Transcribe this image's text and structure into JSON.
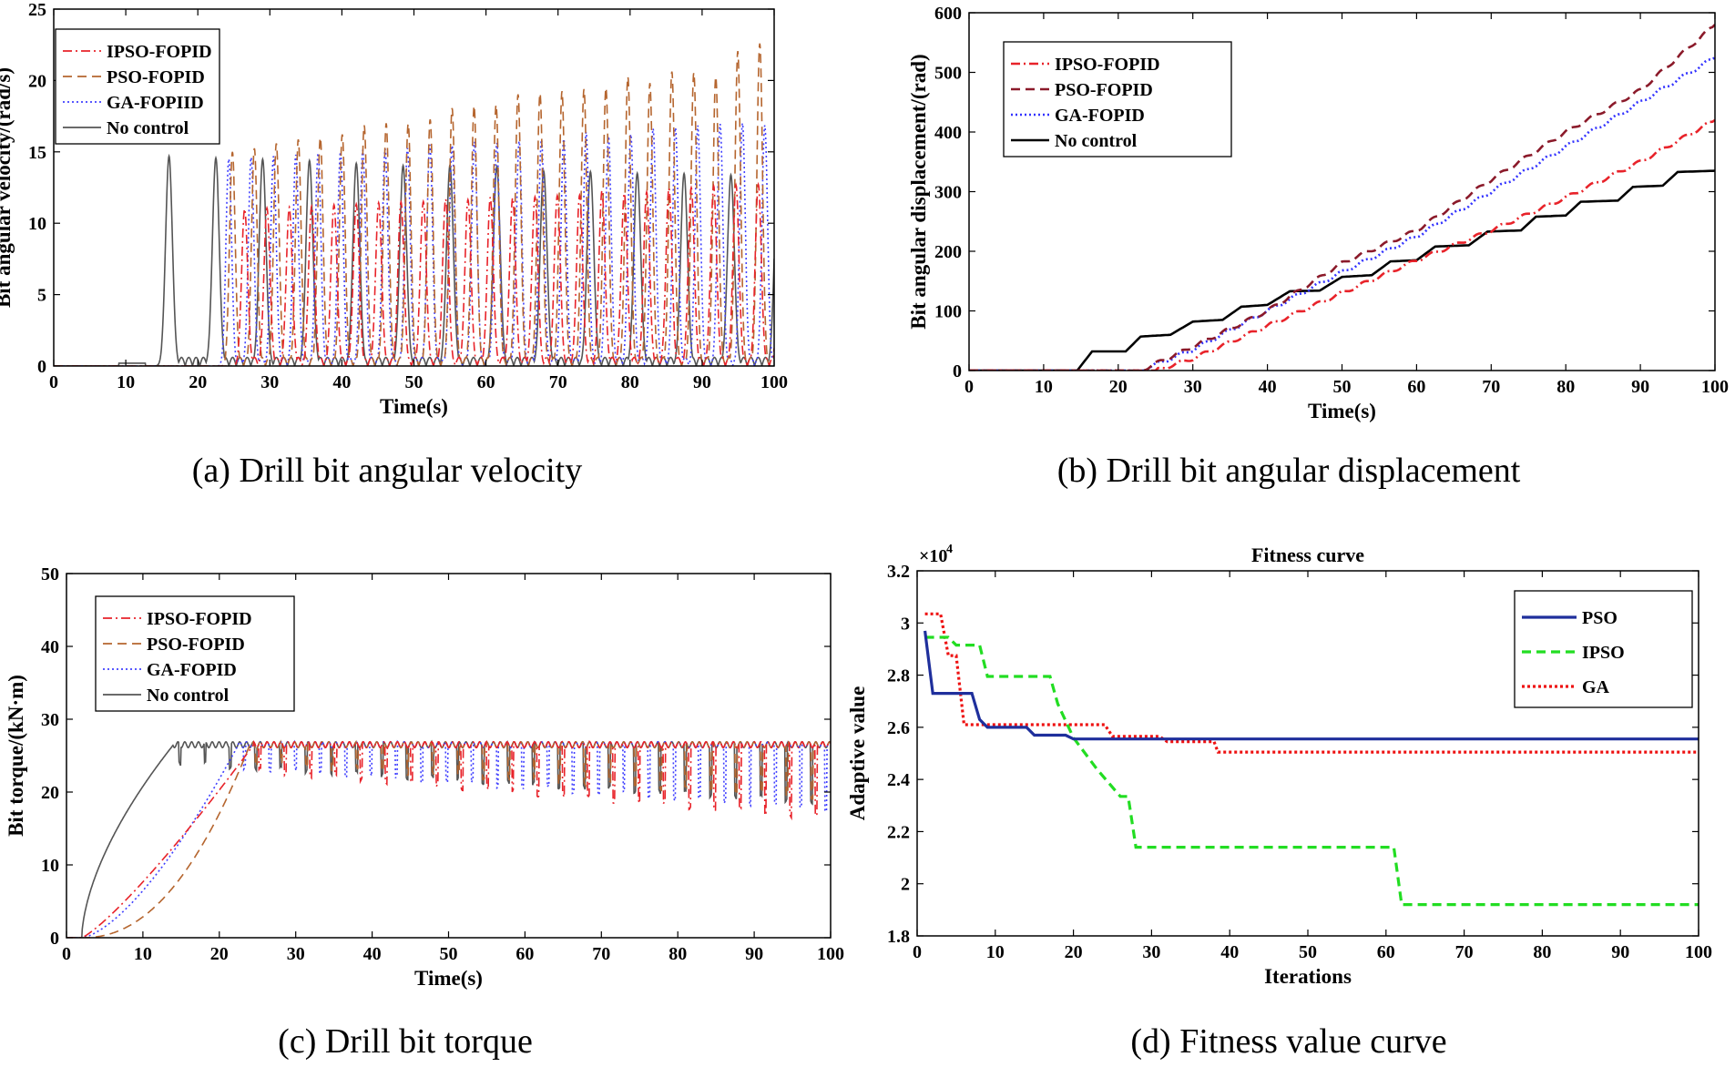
{
  "captions": {
    "a": "(a) Drill bit angular velocity",
    "b": "(b) Drill bit angular displacement",
    "c": "(c) Drill bit torque",
    "d": "(d) Fitness value curve"
  },
  "chart_data": [
    {
      "id": "a",
      "type": "line",
      "title": "",
      "xlabel": "Time(s)",
      "ylabel": "Bit angular velocity/(rad/s)",
      "xlim": [
        0,
        100
      ],
      "ylim": [
        0,
        25
      ],
      "xticks": [
        0,
        10,
        20,
        30,
        40,
        50,
        60,
        70,
        80,
        90,
        100
      ],
      "yticks": [
        0,
        5,
        10,
        15,
        20,
        25
      ],
      "legend_position": "top-left",
      "series": [
        {
          "name": "IPSO-FOPID",
          "color": "#e8232a",
          "dash": "dashdot",
          "model": "osc",
          "start": 26.5,
          "period": 3.1,
          "amp": [
            11,
            13
          ],
          "width": 0.75
        },
        {
          "name": "PSO-FOPID",
          "color": "#b5652e",
          "dash": "dash",
          "model": "osc",
          "start": 24.8,
          "period": 3.05,
          "amp": [
            15,
            22.8
          ],
          "width": 0.7
        },
        {
          "name": "GA-FOPIID",
          "color": "#4040ff",
          "dash": "dot",
          "model": "osc",
          "start": 24.3,
          "period": 3.1,
          "amp": [
            14.5,
            17.5
          ],
          "width": 0.7
        },
        {
          "name": "No control",
          "color": "#555555",
          "dash": "solid",
          "model": "osc",
          "start": 16,
          "period": 6.5,
          "amp": [
            14.7,
            13
          ],
          "width": 0.85
        }
      ]
    },
    {
      "id": "b",
      "type": "line",
      "title": "",
      "xlabel": "Time(s)",
      "ylabel": "Bit angular displacement/(rad)",
      "xlim": [
        0,
        100
      ],
      "ylim": [
        0,
        600
      ],
      "xticks": [
        0,
        10,
        20,
        30,
        40,
        50,
        60,
        70,
        80,
        90,
        100
      ],
      "yticks": [
        0,
        100,
        200,
        300,
        400,
        500,
        600
      ],
      "legend_position": "top-left",
      "series": [
        {
          "name": "IPSO-FOPID",
          "color": "#e8232a",
          "dash": "dashdot",
          "model": "ramp",
          "points": [
            [
              0,
              0
            ],
            [
              25,
              0
            ],
            [
              30,
              20
            ],
            [
              40,
              75
            ],
            [
              50,
              130
            ],
            [
              60,
              185
            ],
            [
              70,
              235
            ],
            [
              80,
              290
            ],
            [
              90,
              350
            ],
            [
              100,
              420
            ]
          ]
        },
        {
          "name": "PSO-FOPID",
          "color": "#8b1a2a",
          "dash": "dash",
          "model": "ramp",
          "points": [
            [
              0,
              0
            ],
            [
              23,
              0
            ],
            [
              30,
              40
            ],
            [
              40,
              100
            ],
            [
              50,
              180
            ],
            [
              60,
              235
            ],
            [
              70,
              320
            ],
            [
              80,
              400
            ],
            [
              90,
              470
            ],
            [
              100,
              580
            ]
          ]
        },
        {
          "name": "GA-FOPID",
          "color": "#3333ff",
          "dash": "dot",
          "model": "ramp",
          "points": [
            [
              0,
              0
            ],
            [
              23,
              0
            ],
            [
              30,
              35
            ],
            [
              40,
              100
            ],
            [
              50,
              165
            ],
            [
              60,
              225
            ],
            [
              70,
              300
            ],
            [
              80,
              375
            ],
            [
              90,
              450
            ],
            [
              100,
              525
            ]
          ]
        },
        {
          "name": "No control",
          "color": "#000000",
          "dash": "solid",
          "model": "ramp",
          "points": [
            [
              0,
              0
            ],
            [
              14.5,
              0
            ],
            [
              16.5,
              32
            ],
            [
              21,
              32
            ],
            [
              23,
              57
            ],
            [
              27,
              60
            ],
            [
              30,
              82
            ],
            [
              34,
              85
            ],
            [
              36.5,
              107
            ],
            [
              40,
              110
            ],
            [
              43,
              133
            ],
            [
              47,
              134
            ],
            [
              50,
              157
            ],
            [
              54,
              160
            ],
            [
              56.5,
              183
            ],
            [
              60,
              185
            ],
            [
              62.5,
              208
            ],
            [
              67,
              210
            ],
            [
              69.5,
              233
            ],
            [
              74,
              235
            ],
            [
              76,
              258
            ],
            [
              80,
              260
            ],
            [
              82,
              283
            ],
            [
              87,
              285
            ],
            [
              89,
              308
            ],
            [
              93,
              310
            ],
            [
              95,
              333
            ],
            [
              100,
              335
            ]
          ]
        }
      ]
    },
    {
      "id": "c",
      "type": "line",
      "title": "",
      "xlabel": "Time(s)",
      "ylabel": "Bit torque/(kN·m)",
      "xlim": [
        0,
        100
      ],
      "ylim": [
        0,
        50
      ],
      "xticks": [
        0,
        10,
        20,
        30,
        40,
        50,
        60,
        70,
        80,
        90,
        100
      ],
      "yticks": [
        0,
        10,
        20,
        30,
        40,
        50
      ],
      "legend_position": "top-left",
      "series": [
        {
          "name": "IPSO-FOPID",
          "color": "#e8232a",
          "dash": "dashdot",
          "model": "torque",
          "t0": 2,
          "t1": 24.5,
          "level": 26.5,
          "dip": 3.5,
          "growth": 1.2
        },
        {
          "name": "PSO-FOPID",
          "color": "#b5652e",
          "dash": "dash",
          "model": "torque",
          "t0": 2,
          "t1": 24,
          "level": 26.5,
          "dip": 2.5,
          "growth": 2.2
        },
        {
          "name": "GA-FOPID",
          "color": "#4040ff",
          "dash": "dot",
          "model": "torque",
          "t0": 2,
          "t1": 22.5,
          "level": 26.5,
          "dip": 3,
          "growth": 1.5
        },
        {
          "name": "No control",
          "color": "#555555",
          "dash": "solid",
          "model": "torque",
          "t0": 2,
          "t1": 14,
          "level": 26.5,
          "dip": 2.5,
          "growth": 0.6
        }
      ]
    },
    {
      "id": "d",
      "type": "line",
      "title": "Fitness curve",
      "xlabel": "Iterations",
      "ylabel": "Adaptive value",
      "scale_label": "×10",
      "scale_exp": "4",
      "xlim": [
        0,
        100
      ],
      "ylim": [
        1.8,
        3.2
      ],
      "xticks": [
        0,
        10,
        20,
        30,
        40,
        50,
        60,
        70,
        80,
        90,
        100
      ],
      "yticks": [
        1.8,
        2,
        2.2,
        2.4,
        2.6,
        2.8,
        3,
        3.2
      ],
      "ytick_labels": [
        "1.8",
        "2",
        "2.2",
        "2.4",
        "2.6",
        "2.8",
        "3",
        "3.2"
      ],
      "legend_position": "top-right",
      "series": [
        {
          "name": "PSO",
          "color": "#1f2f9c",
          "dash": "solid",
          "model": "points",
          "points": [
            [
              1,
              2.97
            ],
            [
              2,
              2.73
            ],
            [
              7,
              2.73
            ],
            [
              8,
              2.63
            ],
            [
              9,
              2.6
            ],
            [
              14,
              2.6
            ],
            [
              15,
              2.57
            ],
            [
              19,
              2.57
            ],
            [
              20,
              2.555
            ],
            [
              100,
              2.555
            ]
          ]
        },
        {
          "name": "IPSO",
          "color": "#22dd22",
          "dash": "dash",
          "model": "points",
          "points": [
            [
              1,
              2.945
            ],
            [
              4,
              2.945
            ],
            [
              5,
              2.915
            ],
            [
              8,
              2.915
            ],
            [
              9,
              2.795
            ],
            [
              17,
              2.795
            ],
            [
              18,
              2.69
            ],
            [
              20,
              2.56
            ],
            [
              23,
              2.44
            ],
            [
              26,
              2.335
            ],
            [
              27,
              2.335
            ],
            [
              28,
              2.14
            ],
            [
              61,
              2.14
            ],
            [
              62,
              1.92
            ],
            [
              100,
              1.92
            ]
          ]
        },
        {
          "name": "GA",
          "color": "#ee1111",
          "dash": "dotted",
          "model": "points",
          "points": [
            [
              1,
              3.035
            ],
            [
              3,
              3.035
            ],
            [
              4,
              2.875
            ],
            [
              5,
              2.875
            ],
            [
              6,
              2.61
            ],
            [
              24,
              2.61
            ],
            [
              25,
              2.565
            ],
            [
              31,
              2.565
            ],
            [
              32,
              2.545
            ],
            [
              38,
              2.545
            ],
            [
              38.5,
              2.505
            ],
            [
              100,
              2.505
            ]
          ]
        }
      ]
    }
  ]
}
